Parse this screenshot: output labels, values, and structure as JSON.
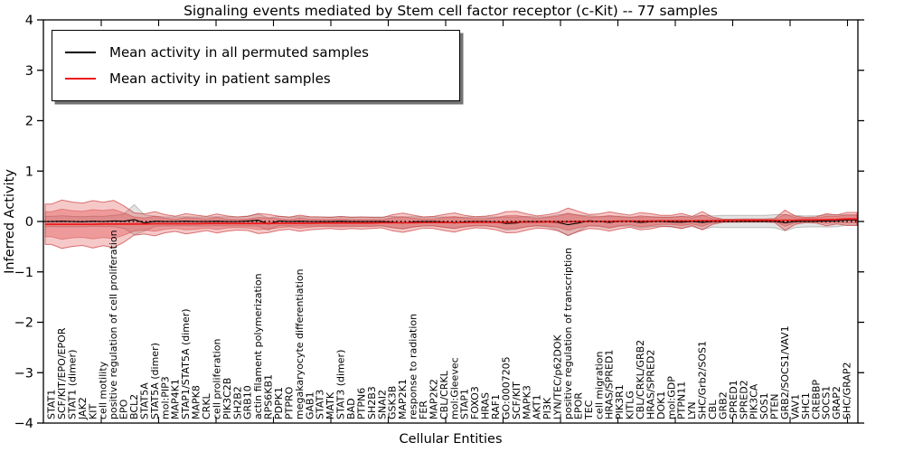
{
  "legend": {
    "items": [
      {
        "label": "Mean activity in all permuted samples",
        "color": "#000000"
      },
      {
        "label": "Mean activity in patient samples",
        "color": "#ed1c1c"
      }
    ]
  },
  "chart_data": {
    "type": "line",
    "title": "Signaling events mediated by Stem cell factor receptor (c-Kit) -- 77 samples",
    "xlabel": "Cellular Entities",
    "ylabel": "Inferred Activity",
    "ylim": [
      -4,
      4
    ],
    "grid": false,
    "legend_position": "upper left",
    "ytick_labels": [
      "4",
      "3",
      "2",
      "1",
      "0",
      "−1",
      "−2",
      "−3",
      "−4"
    ],
    "ytick_values": [
      4,
      3,
      2,
      1,
      0,
      -1,
      -2,
      -3,
      -4
    ],
    "zero_line": {
      "style": "dotted",
      "color": "#000000",
      "value": 0
    },
    "categories": [
      "STAT1",
      "SCF/KIT/EPO/EPOR",
      "STAT1 (dimer)",
      "JAK2",
      "KIT",
      "cell motility",
      "positive regulation of cell proliferation",
      "EPO",
      "BCL2",
      "STAT5A",
      "STAT5A (dimer)",
      "mol:PIP3",
      "MAP4K1",
      "STAP1/STAT5A (dimer)",
      "MAPK8",
      "CRKL",
      "cell proliferation",
      "PIK3C2B",
      "SH2B2",
      "GRB10",
      "actin filament polymerization",
      "RPS6KB1",
      "PDPK1",
      "PTPRO",
      "megakaryocyte differentiation",
      "GAB1",
      "STAT3",
      "MATK",
      "STAT3 (dimer)",
      "BAD",
      "PTPN6",
      "SH2B3",
      "SNAI2",
      "GSK3B",
      "MAP2K1",
      "response to radiation",
      "FER",
      "MAP2K2",
      "CBL/CRKL",
      "mol:Gleevec",
      "STAP1",
      "FOXO3",
      "HRAS",
      "RAF1",
      "GO:0007205",
      "SCF/KIT",
      "MAPK3",
      "AKT1",
      "PI3K",
      "LYN/TEC/p62DOK",
      "positive regulation of transcription",
      "EPOR",
      "TEC",
      "cell migration",
      "HRAS/SPRED1",
      "PIK3R1",
      "KITLG",
      "CBL/CRKL/GRB2",
      "HRAS/SPRED2",
      "DOK1",
      "mol:GDP",
      "PTPN11",
      "LYN",
      "SHC/Grb2/SOS1",
      "CBL",
      "GRB2",
      "SPRED1",
      "SPRED2",
      "PIK3CA",
      "SOS1",
      "PTEN",
      "GRB2/SOCS1/VAV1",
      "VAV1",
      "SHC1",
      "CREBBP",
      "SOCS1",
      "GRAP2",
      "SHC/GRAP2"
    ],
    "series": [
      {
        "name": "Mean activity in all permuted samples",
        "color": "#000000",
        "width": 1.1,
        "values": [
          0,
          0.005,
          0,
          -0.005,
          0.005,
          0,
          0.01,
          0.005,
          0.035,
          -0.03,
          0.005,
          0,
          0,
          0.005,
          0,
          0,
          0.005,
          0,
          0,
          0.01,
          0.025,
          -0.05,
          0.01,
          0,
          0.005,
          0,
          0,
          0,
          0.005,
          0,
          0,
          0,
          0,
          -0.01,
          -0.03,
          -0.005,
          0,
          0,
          -0.01,
          -0.03,
          -0.005,
          0,
          0,
          -0.01,
          -0.04,
          -0.03,
          0,
          0,
          -0.005,
          -0.02,
          -0.065,
          -0.03,
          0.015,
          0,
          -0.02,
          0.005,
          0,
          -0.02,
          -0.005,
          0,
          -0.01,
          -0.015,
          0,
          -0.02,
          0,
          0,
          0,
          0,
          0,
          0,
          0.005,
          -0.025,
          0,
          0,
          0.005,
          0.01,
          0.015,
          0.03
        ]
      },
      {
        "name": "Mean activity in patient samples",
        "color": "#ed1c1c",
        "width": 1.8,
        "values": [
          -0.055,
          -0.055,
          -0.055,
          -0.055,
          -0.055,
          -0.05,
          -0.05,
          -0.05,
          -0.05,
          -0.05,
          -0.045,
          -0.045,
          -0.045,
          -0.045,
          -0.045,
          -0.04,
          -0.04,
          -0.04,
          -0.04,
          -0.04,
          -0.04,
          -0.04,
          -0.035,
          -0.035,
          -0.035,
          -0.035,
          -0.03,
          -0.03,
          -0.03,
          -0.03,
          -0.03,
          -0.03,
          -0.025,
          -0.025,
          -0.025,
          -0.025,
          -0.02,
          -0.02,
          -0.02,
          -0.02,
          -0.02,
          -0.015,
          -0.015,
          -0.015,
          -0.015,
          -0.01,
          -0.01,
          -0.01,
          -0.005,
          -0.005,
          -0.005,
          0,
          0,
          0,
          0,
          0.005,
          0.005,
          0.005,
          0.005,
          0.01,
          0.01,
          0.01,
          0.01,
          0.015,
          0.015,
          0.015,
          0.015,
          0.02,
          0.02,
          0.02,
          0.02,
          0.025,
          0.025,
          0.03,
          0.03,
          0.035,
          0.04,
          0.05
        ]
      }
    ],
    "bands": [
      {
        "name": "permuted-samples-std-band",
        "center": 0,
        "fill": "#808080",
        "fill_alpha": 0.22,
        "edge": "#6e6e6e",
        "edge_alpha": 0.4,
        "halfwidths": [
          0.1,
          0.11,
          0.1,
          0.1,
          0.1,
          0.1,
          0.11,
          0.14,
          0.3,
          0.16,
          0.1,
          0.09,
          0.09,
          0.09,
          0.09,
          0.09,
          0.09,
          0.09,
          0.09,
          0.1,
          0.12,
          0.12,
          0.09,
          0.09,
          0.09,
          0.09,
          0.09,
          0.09,
          0.09,
          0.09,
          0.09,
          0.09,
          0.09,
          0.11,
          0.12,
          0.1,
          0.09,
          0.09,
          0.1,
          0.11,
          0.09,
          0.09,
          0.09,
          0.1,
          0.13,
          0.12,
          0.1,
          0.09,
          0.1,
          0.15,
          0.22,
          0.16,
          0.1,
          0.1,
          0.12,
          0.1,
          0.09,
          0.11,
          0.1,
          0.09,
          0.1,
          0.12,
          0.1,
          0.14,
          0.11,
          0.12,
          0.12,
          0.12,
          0.12,
          0.12,
          0.13,
          0.16,
          0.12,
          0.11,
          0.11,
          0.12,
          0.12,
          0.1
        ]
      },
      {
        "name": "patient-samples-outer-band",
        "center": 1,
        "fill": "#de2d2d",
        "fill_alpha": 0.26,
        "edge": "#c62323",
        "edge_alpha": 0.6,
        "halfwidths": [
          0.4,
          0.48,
          0.44,
          0.42,
          0.47,
          0.43,
          0.47,
          0.36,
          0.22,
          0.2,
          0.24,
          0.18,
          0.15,
          0.2,
          0.17,
          0.14,
          0.19,
          0.15,
          0.13,
          0.14,
          0.2,
          0.18,
          0.14,
          0.12,
          0.16,
          0.13,
          0.12,
          0.11,
          0.13,
          0.11,
          0.12,
          0.11,
          0.1,
          0.16,
          0.19,
          0.15,
          0.11,
          0.12,
          0.16,
          0.19,
          0.14,
          0.11,
          0.12,
          0.15,
          0.21,
          0.21,
          0.16,
          0.12,
          0.14,
          0.18,
          0.27,
          0.2,
          0.14,
          0.15,
          0.19,
          0.15,
          0.12,
          0.17,
          0.15,
          0.11,
          0.11,
          0.15,
          0.09,
          0.18,
          0.07,
          0.03,
          0.03,
          0.03,
          0.03,
          0.03,
          0.04,
          0.2,
          0.08,
          0.05,
          0.06,
          0.12,
          0.09,
          0.13
        ]
      },
      {
        "name": "patient-samples-inner-band",
        "center": 1,
        "fill": "#de2d2d",
        "fill_alpha": 0.3,
        "edge": "#c62323",
        "edge_alpha": 0.35,
        "halfwidths": [
          0.25,
          0.3,
          0.27,
          0.26,
          0.29,
          0.27,
          0.29,
          0.22,
          0.14,
          0.12,
          0.15,
          0.11,
          0.09,
          0.12,
          0.11,
          0.09,
          0.12,
          0.09,
          0.08,
          0.09,
          0.12,
          0.11,
          0.09,
          0.07,
          0.1,
          0.08,
          0.07,
          0.07,
          0.08,
          0.07,
          0.07,
          0.07,
          0.06,
          0.1,
          0.12,
          0.09,
          0.07,
          0.07,
          0.1,
          0.12,
          0.09,
          0.07,
          0.07,
          0.09,
          0.13,
          0.13,
          0.1,
          0.07,
          0.09,
          0.11,
          0.17,
          0.12,
          0.09,
          0.09,
          0.12,
          0.09,
          0.07,
          0.11,
          0.09,
          0.07,
          0.07,
          0.09,
          0.06,
          0.11,
          0.04,
          0.02,
          0.02,
          0.02,
          0.02,
          0.02,
          0.02,
          0.12,
          0.05,
          0.03,
          0.04,
          0.07,
          0.06,
          0.08
        ]
      }
    ]
  }
}
